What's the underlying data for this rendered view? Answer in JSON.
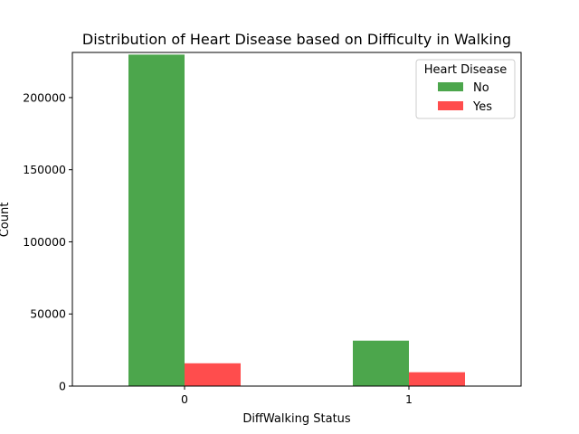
{
  "chart_data": {
    "type": "bar",
    "title": "Distribution of Heart Disease based on Difficulty in Walking",
    "xlabel": "DiffWalking Status",
    "ylabel": "Count",
    "categories": [
      "0",
      "1"
    ],
    "series": [
      {
        "name": "No",
        "values": [
          229800,
          31500
        ],
        "color": "#4ca64c"
      },
      {
        "name": "Yes",
        "values": [
          15800,
          9600
        ],
        "color": "#ff4d4d"
      }
    ],
    "ylim": [
      0,
      231300
    ],
    "yticks": [
      0,
      50000,
      100000,
      150000,
      200000
    ],
    "legend": {
      "title": "Heart Disease",
      "placement": "top-right"
    },
    "grid": false
  }
}
